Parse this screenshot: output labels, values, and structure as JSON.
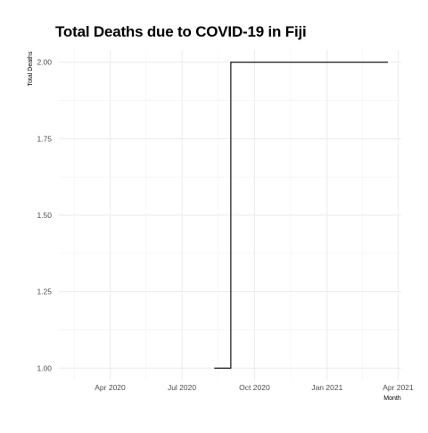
{
  "chart_data": {
    "type": "line",
    "line_style": "step",
    "title": "Total Deaths due to COVID-19 in Fiji",
    "xlabel": "Month",
    "ylabel": "Total Deaths",
    "x_type": "date",
    "xlim": [
      "2020-01-27",
      "2021-04-05"
    ],
    "ylim": [
      0.96,
      2.04
    ],
    "x_ticks": [
      {
        "date": "2020-04-01",
        "label": "Apr 2020"
      },
      {
        "date": "2020-07-01",
        "label": "Jul 2020"
      },
      {
        "date": "2020-10-01",
        "label": "Oct 2020"
      },
      {
        "date": "2021-01-01",
        "label": "Jan 2021"
      },
      {
        "date": "2021-04-01",
        "label": "Apr 2021"
      }
    ],
    "y_ticks": [
      {
        "value": 1.0,
        "label": "1.00"
      },
      {
        "value": 1.25,
        "label": "1.25"
      },
      {
        "value": 1.5,
        "label": "1.50"
      },
      {
        "value": 1.75,
        "label": "1.75"
      },
      {
        "value": 2.0,
        "label": "2.00"
      }
    ],
    "grid": true,
    "legend": "none",
    "line_color": "#000000",
    "series": [
      {
        "x": [
          "2020-08-11",
          "2020-09-01",
          "2021-03-19"
        ],
        "values": [
          1,
          2,
          2
        ]
      }
    ]
  }
}
